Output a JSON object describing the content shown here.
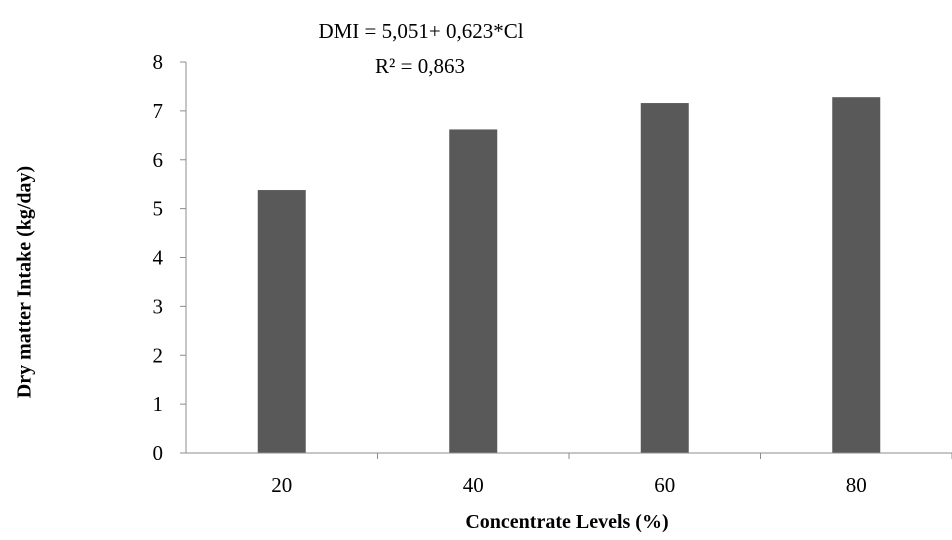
{
  "colors": {
    "bar": "#595959",
    "axis": "#8c8c8c",
    "background": "#ffffff",
    "text": "#000000"
  },
  "chart_data": {
    "type": "bar",
    "title": "",
    "xlabel": "Concentrate Levels (%)",
    "ylabel": "Dry matter Intake (kg/day)",
    "categories": [
      "20",
      "40",
      "60",
      "80"
    ],
    "values": [
      5.38,
      6.62,
      7.16,
      7.28
    ],
    "ylim": [
      0,
      8
    ],
    "yticks": [
      "0",
      "1",
      "2",
      "3",
      "4",
      "5",
      "6",
      "7",
      "8"
    ],
    "grid": false,
    "legend": "none",
    "annotations": {
      "equation": "DMI = 5,051+ 0,623*Cl",
      "r_squared": "R² = 0,863"
    }
  }
}
